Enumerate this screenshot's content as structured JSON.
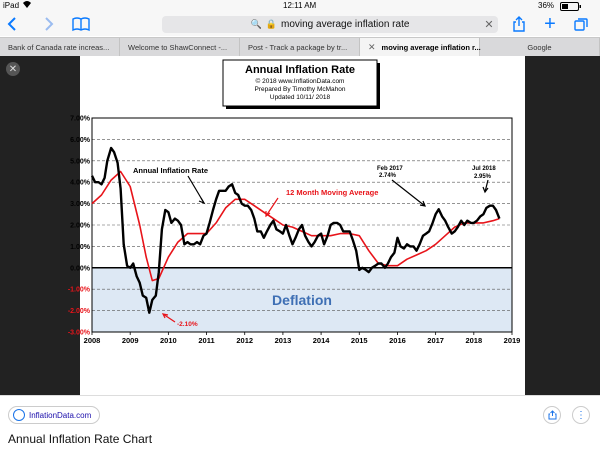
{
  "status_bar": {
    "device": "iPad",
    "wifi_icon": "wifi-icon",
    "time": "12:11 AM",
    "battery": "36%",
    "battery_icon": "battery-icon"
  },
  "toolbar": {
    "url": "moving average inflation rate",
    "lock_icon": "lock-icon",
    "accent_color": "#0a7aff"
  },
  "tabs": [
    {
      "label": "Bank of Canada rate increas...",
      "active": false
    },
    {
      "label": "Welcome to ShawConnect -...",
      "active": false
    },
    {
      "label": "Post - Track a package by tr...",
      "active": false
    },
    {
      "label": "moving average inflation r...",
      "active": true
    },
    {
      "label": "Google",
      "active": false
    }
  ],
  "footer": {
    "source": "InflationData.com",
    "caption": "Annual Inflation Rate Chart"
  },
  "chart_data": {
    "type": "line",
    "title": "Annual Inflation Rate",
    "subtitle_lines": [
      "© 2018 www.InflationData.com",
      "Prepared By Timothy McMahon",
      "Updated 10/11/ 2018"
    ],
    "ylim": [
      -3,
      7
    ],
    "y_ticks": [
      "7.00%",
      "6.00%",
      "5.00%",
      "4.00%",
      "3.00%",
      "2.00%",
      "1.00%",
      "0.00%",
      "-1.00%",
      "-2.00%",
      "-3.00%"
    ],
    "y_tick_values": [
      7,
      6,
      5,
      4,
      3,
      2,
      1,
      0,
      -1,
      -2,
      -3
    ],
    "xlim": [
      2008,
      2019
    ],
    "x_ticks": [
      "2008",
      "2009",
      "2010",
      "2011",
      "2012",
      "2013",
      "2014",
      "2015",
      "2016",
      "2017",
      "2018",
      "2019"
    ],
    "deflation_label": "Deflation",
    "colors": {
      "annual": "#000000",
      "moving": "#e8141a",
      "deflation_fill": "#dde8f4",
      "deflation_text": "#3e6fb4",
      "annotation_red": "#e8141a"
    },
    "series": [
      {
        "name": "Annual Inflation Rate",
        "x": [
          2008.0,
          2008.08,
          2008.17,
          2008.25,
          2008.33,
          2008.4,
          2008.5,
          2008.58,
          2008.67,
          2008.75,
          2008.83,
          2008.92,
          2009.0,
          2009.08,
          2009.17,
          2009.25,
          2009.33,
          2009.42,
          2009.5,
          2009.58,
          2009.67,
          2009.75,
          2009.83,
          2009.92,
          2010.0,
          2010.08,
          2010.17,
          2010.25,
          2010.33,
          2010.42,
          2010.5,
          2010.58,
          2010.67,
          2010.75,
          2010.83,
          2010.92,
          2011.0,
          2011.08,
          2011.17,
          2011.25,
          2011.33,
          2011.42,
          2011.5,
          2011.58,
          2011.67,
          2011.75,
          2011.83,
          2011.92,
          2012.0,
          2012.08,
          2012.17,
          2012.25,
          2012.33,
          2012.42,
          2012.5,
          2012.58,
          2012.67,
          2012.75,
          2012.83,
          2012.92,
          2013.0,
          2013.08,
          2013.17,
          2013.25,
          2013.33,
          2013.42,
          2013.5,
          2013.58,
          2013.67,
          2013.75,
          2013.83,
          2013.92,
          2014.0,
          2014.08,
          2014.17,
          2014.25,
          2014.33,
          2014.42,
          2014.5,
          2014.58,
          2014.67,
          2014.75,
          2014.83,
          2014.92,
          2015.0,
          2015.08,
          2015.17,
          2015.25,
          2015.33,
          2015.42,
          2015.5,
          2015.58,
          2015.67,
          2015.75,
          2015.83,
          2015.92,
          2016.0,
          2016.08,
          2016.17,
          2016.25,
          2016.33,
          2016.42,
          2016.5,
          2016.58,
          2016.67,
          2016.75,
          2016.83,
          2016.92,
          2017.0,
          2017.08,
          2017.17,
          2017.25,
          2017.33,
          2017.42,
          2017.5,
          2017.58,
          2017.67,
          2017.75,
          2017.83,
          2017.92,
          2018.0,
          2018.08,
          2018.17,
          2018.25,
          2018.33,
          2018.42,
          2018.5,
          2018.58,
          2018.67
        ],
        "values": [
          4.3,
          4.0,
          4.0,
          3.9,
          4.2,
          5.0,
          5.6,
          5.4,
          4.9,
          3.7,
          1.1,
          0.1,
          0.0,
          0.2,
          -0.4,
          -0.7,
          -1.3,
          -1.4,
          -2.1,
          -1.5,
          -1.3,
          -0.2,
          1.8,
          2.7,
          2.6,
          2.1,
          2.3,
          2.2,
          2.0,
          1.1,
          1.2,
          1.1,
          1.1,
          1.2,
          1.1,
          1.5,
          1.6,
          2.1,
          2.7,
          3.2,
          3.6,
          3.6,
          3.6,
          3.8,
          3.9,
          3.5,
          3.4,
          3.0,
          2.9,
          2.9,
          2.7,
          2.3,
          1.7,
          1.7,
          1.4,
          1.7,
          2.0,
          2.2,
          1.8,
          1.7,
          1.6,
          2.0,
          1.5,
          1.1,
          1.4,
          1.8,
          2.0,
          1.5,
          1.2,
          1.0,
          1.2,
          1.5,
          1.6,
          1.1,
          1.5,
          2.0,
          2.1,
          2.1,
          2.0,
          1.7,
          1.7,
          1.7,
          1.3,
          0.8,
          -0.1,
          0.0,
          -0.1,
          -0.2,
          0.0,
          0.1,
          0.2,
          0.2,
          0.0,
          0.2,
          0.5,
          0.7,
          1.4,
          1.0,
          0.9,
          1.1,
          1.0,
          1.0,
          0.8,
          1.1,
          1.5,
          1.6,
          1.7,
          2.1,
          2.5,
          2.74,
          2.4,
          2.2,
          1.9,
          1.6,
          1.7,
          1.9,
          2.2,
          2.0,
          2.2,
          2.1,
          2.1,
          2.2,
          2.4,
          2.5,
          2.8,
          2.9,
          2.9,
          2.7,
          2.3
        ]
      },
      {
        "name": "12 Month Moving Average",
        "x": [
          2008.0,
          2008.25,
          2008.5,
          2008.75,
          2009.0,
          2009.25,
          2009.42,
          2009.58,
          2009.75,
          2010.0,
          2010.25,
          2010.5,
          2010.75,
          2011.0,
          2011.25,
          2011.5,
          2011.75,
          2012.0,
          2012.25,
          2012.5,
          2012.75,
          2013.0,
          2013.25,
          2013.5,
          2013.75,
          2014.0,
          2014.25,
          2014.5,
          2014.75,
          2015.0,
          2015.25,
          2015.5,
          2015.75,
          2016.0,
          2016.25,
          2016.5,
          2016.75,
          2017.0,
          2017.25,
          2017.5,
          2017.75,
          2018.0,
          2018.25,
          2018.5,
          2018.67
        ],
        "values": [
          3.0,
          3.4,
          4.1,
          4.5,
          3.8,
          2.0,
          0.5,
          -0.6,
          -0.5,
          0.5,
          1.2,
          1.6,
          1.6,
          1.6,
          2.1,
          2.8,
          3.2,
          3.2,
          2.9,
          2.6,
          2.3,
          2.0,
          1.9,
          1.7,
          1.5,
          1.5,
          1.5,
          1.6,
          1.6,
          1.5,
          0.8,
          0.2,
          0.1,
          0.1,
          0.4,
          0.6,
          0.8,
          1.1,
          1.5,
          1.9,
          2.1,
          2.1,
          2.1,
          2.2,
          2.3
        ]
      }
    ],
    "annotations": [
      {
        "text": "Annual Inflation Rate",
        "color": "black"
      },
      {
        "text": "12 Month Moving Average",
        "color": "red"
      },
      {
        "text": "Feb 2017",
        "color": "black"
      },
      {
        "text": "2.74%",
        "color": "black"
      },
      {
        "text": "Jul 2018",
        "color": "black"
      },
      {
        "text": "2.95%",
        "color": "black"
      },
      {
        "text": "-2.10%",
        "color": "red"
      }
    ]
  }
}
